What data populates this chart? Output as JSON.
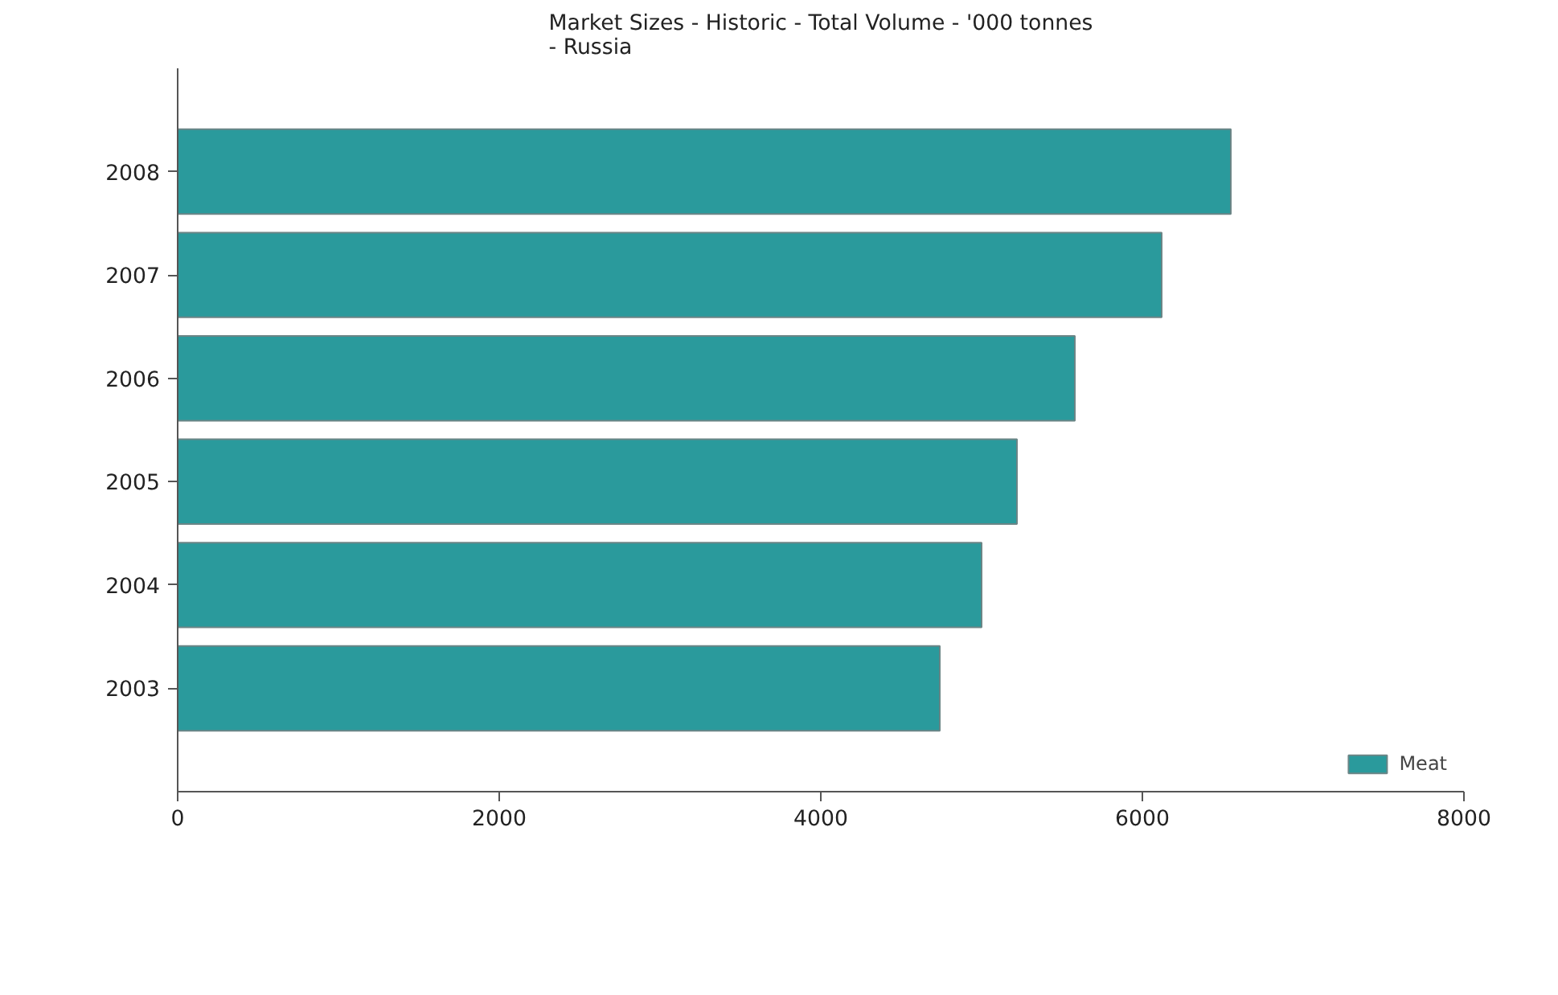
{
  "chart_data": {
    "type": "bar",
    "orientation": "horizontal",
    "title": "Market Sizes - Historic - Total Volume - '000 tonnes\n- Russia",
    "categories": [
      "2008",
      "2007",
      "2006",
      "2005",
      "2004",
      "2003"
    ],
    "series": [
      {
        "name": "Meat",
        "color": "#2a9a9c",
        "values": [
          6550,
          6120,
          5580,
          5220,
          5000,
          4740
        ]
      }
    ],
    "xlim": [
      0,
      8000
    ],
    "xticks": [
      0,
      2000,
      4000,
      6000,
      8000
    ],
    "grid": false,
    "legend": "bottom right"
  }
}
